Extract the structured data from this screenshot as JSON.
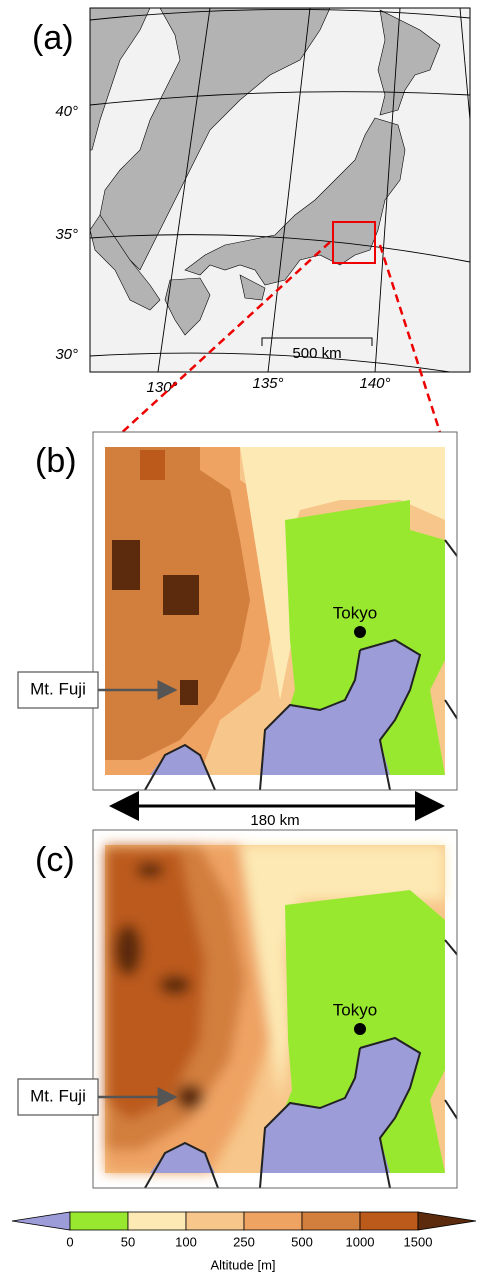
{
  "panels": {
    "a": {
      "label": "(a)",
      "lat_labels": [
        "40°",
        "35°",
        "30°"
      ],
      "lon_labels": [
        "130°",
        "135°",
        "140°"
      ],
      "scale": "500 km"
    },
    "b": {
      "label": "(b)",
      "city": "Tokyo",
      "mountain": "Mt. Fuji",
      "width": "180 km"
    },
    "c": {
      "label": "(c)",
      "city": "Tokyo",
      "mountain": "Mt. Fuji"
    }
  },
  "colorbar": {
    "ticks": [
      0,
      50,
      100,
      250,
      500,
      1000,
      1500
    ],
    "label": "Altitude [m]",
    "colors": [
      "#9c9cd8",
      "#99e830",
      "#fde9b4",
      "#f7c68a",
      "#eea363",
      "#d27e3c",
      "#bb5a1a",
      "#5c2a0c"
    ]
  }
}
